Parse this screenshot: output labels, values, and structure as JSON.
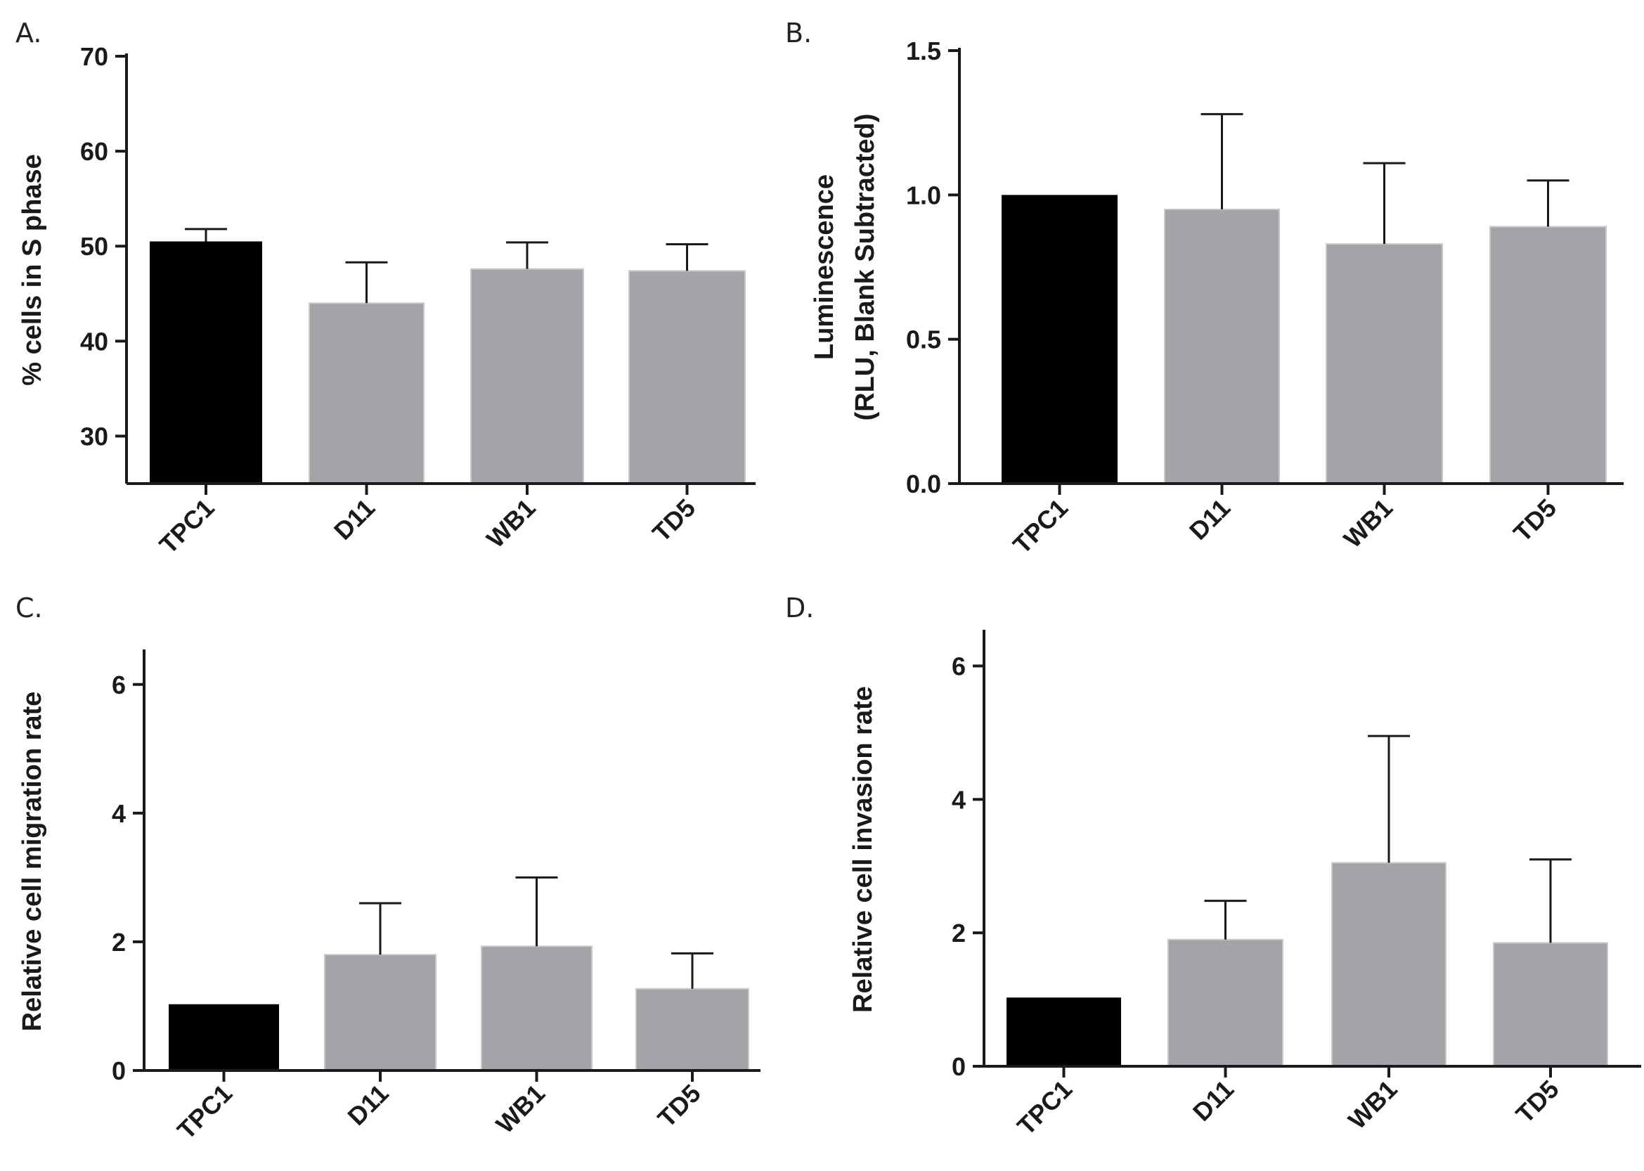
{
  "colors": {
    "control": "#000000",
    "sample": "#a4a3a8",
    "axis": "#1a1a1a"
  },
  "chart_data": [
    {
      "id": "A",
      "type": "bar",
      "panel_label": "A.",
      "ylabel": "% cells in S phase",
      "ylabel_lines": [
        "% cells in S phase"
      ],
      "categories": [
        "TPC1",
        "D11",
        "WB1",
        "TD5"
      ],
      "values": [
        50.5,
        44.0,
        47.6,
        47.4
      ],
      "errors": [
        1.3,
        4.3,
        2.8,
        2.8
      ],
      "ylim": [
        25,
        70
      ],
      "yticks": [
        30,
        40,
        50,
        60,
        70
      ],
      "ytick_labels": [
        "30",
        "40",
        "50",
        "60",
        "70"
      ],
      "legend": "none"
    },
    {
      "id": "B",
      "type": "bar",
      "panel_label": "B.",
      "ylabel": "Luminescence (RLU, Blank Subtracted)",
      "ylabel_lines": [
        "Luminescence",
        "(RLU, Blank Subtracted)"
      ],
      "categories": [
        "TPC1",
        "D11",
        "WB1",
        "TD5"
      ],
      "values": [
        1.0,
        0.95,
        0.83,
        0.89
      ],
      "errors": [
        0.0,
        0.33,
        0.28,
        0.16
      ],
      "ylim": [
        0,
        1.5
      ],
      "yticks": [
        0,
        0.5,
        1.0,
        1.5
      ],
      "ytick_labels": [
        "0.0",
        "0.5",
        "1.0",
        "1.5"
      ],
      "legend": "none"
    },
    {
      "id": "C",
      "type": "bar",
      "panel_label": "C.",
      "ylabel": "Relative cell migration rate",
      "ylabel_lines": [
        "Relative cell migration rate"
      ],
      "categories": [
        "TPC1",
        "D11",
        "WB1",
        "TD5"
      ],
      "values": [
        1.03,
        1.8,
        1.93,
        1.27
      ],
      "errors": [
        0.0,
        0.8,
        1.07,
        0.55
      ],
      "ylim": [
        0,
        6.5
      ],
      "yticks": [
        0,
        2,
        4,
        6
      ],
      "ytick_labels": [
        "0",
        "2",
        "4",
        "6"
      ],
      "legend": "none"
    },
    {
      "id": "D",
      "type": "bar",
      "panel_label": "D.",
      "ylabel": "Relative cell invasion rate",
      "ylabel_lines": [
        "Relative cell invasion rate"
      ],
      "categories": [
        "TPC1",
        "D11",
        "WB1",
        "TD5"
      ],
      "values": [
        1.03,
        1.9,
        3.05,
        1.85
      ],
      "errors": [
        0.0,
        0.58,
        1.9,
        1.25
      ],
      "ylim": [
        0,
        6.5
      ],
      "yticks": [
        0,
        2,
        4,
        6
      ],
      "ytick_labels": [
        "0",
        "2",
        "4",
        "6"
      ],
      "legend": "none"
    }
  ]
}
